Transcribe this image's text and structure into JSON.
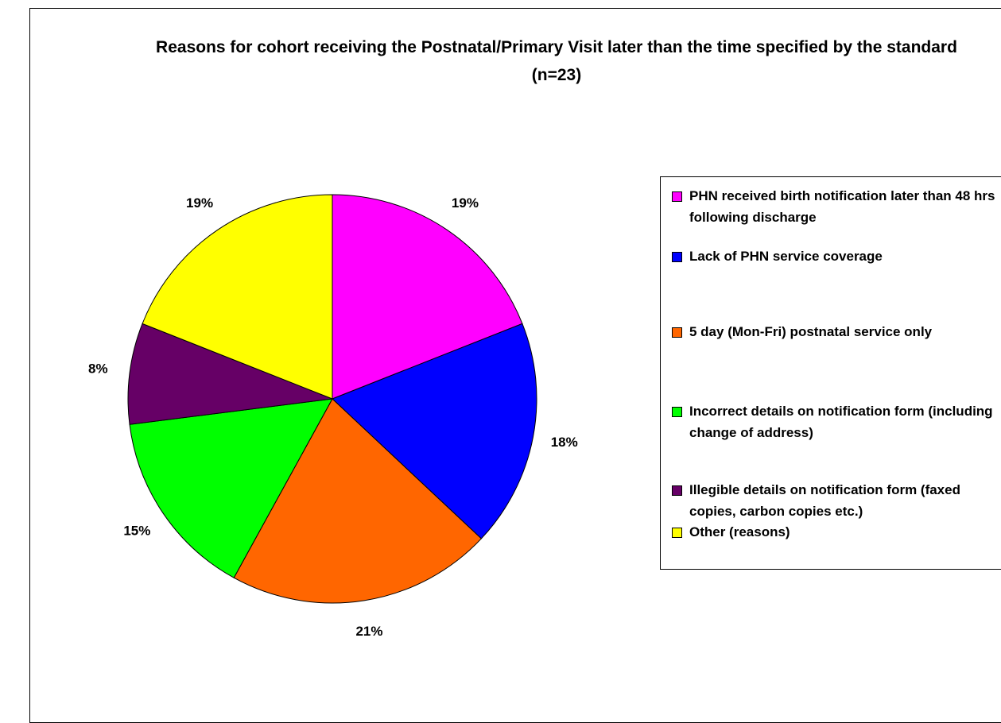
{
  "chart_data": {
    "type": "pie",
    "title": "Reasons for cohort receiving the Postnatal/Primary Visit later than the time specified by the standard (n=23)",
    "categories": [
      "PHN received birth notification later than 48 hrs following discharge",
      "Lack of PHN service coverage",
      "5 day (Mon-Fri) postnatal service only",
      "Incorrect details on notification form (including change of address)",
      "Illegible details on notification form (faxed copies, carbon copies etc.)",
      "Other (reasons)"
    ],
    "values": [
      19,
      18,
      21,
      15,
      8,
      19
    ],
    "value_labels": [
      "19%",
      "18%",
      "21%",
      "15%",
      "8%",
      "19%"
    ],
    "colors": [
      "#ff00ff",
      "#0000ff",
      "#ff6600",
      "#00ff00",
      "#660066",
      "#ffff00"
    ],
    "legend": "right"
  }
}
